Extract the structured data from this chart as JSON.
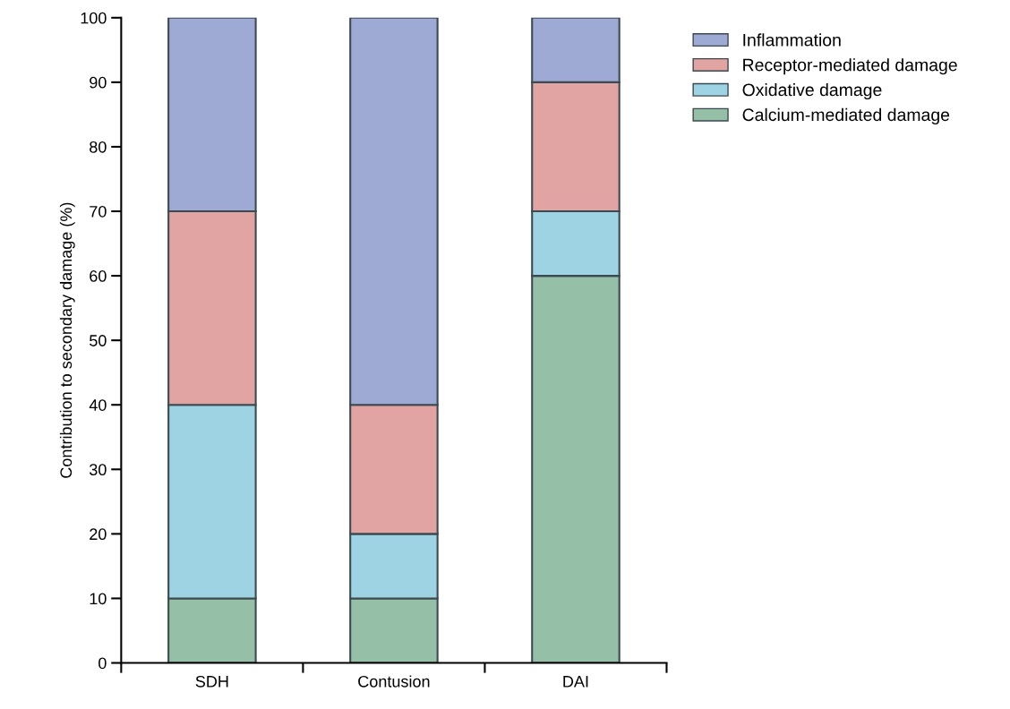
{
  "chart_data": {
    "type": "bar",
    "stacked": true,
    "ylabel": "Contribution to secondary damage (%)",
    "categories": [
      "SDH",
      "Contusion",
      "DAI"
    ],
    "series": [
      {
        "name": "Calcium-mediated damage",
        "color": "#95bfa6",
        "values": [
          10,
          10,
          60
        ]
      },
      {
        "name": "Oxidative damage",
        "color": "#9dd3e2",
        "values": [
          30,
          10,
          10
        ]
      },
      {
        "name": "Receptor-mediated damage",
        "color": "#e2a4a2",
        "values": [
          30,
          20,
          20
        ]
      },
      {
        "name": "Inflammation",
        "color": "#9ea9d4",
        "values": [
          30,
          60,
          10
        ]
      }
    ],
    "ylim": [
      0,
      100
    ],
    "yticks": [
      0,
      10,
      20,
      30,
      40,
      50,
      60,
      70,
      80,
      90,
      100
    ],
    "grid": false,
    "legend": "top right"
  }
}
